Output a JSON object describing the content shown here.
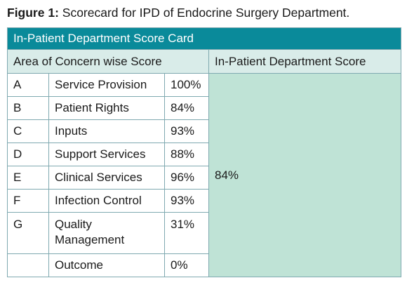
{
  "caption": {
    "label": "Figure 1:",
    "text": "Scorecard for IPD of Endocrine Surgery Department."
  },
  "table": {
    "title": "In-Patient Department Score Card",
    "left_header": "Area of Concern wise Score",
    "right_header": "In-Patient Department Score",
    "overall_score": "84%",
    "rows": [
      {
        "code": "A",
        "area": "Service Provision",
        "score": "100%"
      },
      {
        "code": "B",
        "area": "Patient Rights",
        "score": "84%"
      },
      {
        "code": "C",
        "area": "Inputs",
        "score": "93%"
      },
      {
        "code": "D",
        "area": "Support Services",
        "score": "88%"
      },
      {
        "code": "E",
        "area": "Clinical Services",
        "score": "96%"
      },
      {
        "code": "F",
        "area": "Infection Control",
        "score": "93%"
      },
      {
        "code": "G",
        "area": "Quality Management",
        "score": "31%"
      },
      {
        "code": "",
        "area": "Outcome",
        "score": "0%"
      }
    ]
  },
  "colors": {
    "title_background": "#0a8a9a",
    "header_background": "#d9ece9",
    "score_background": "#bfe3d6",
    "border": "#7fa9b0"
  }
}
